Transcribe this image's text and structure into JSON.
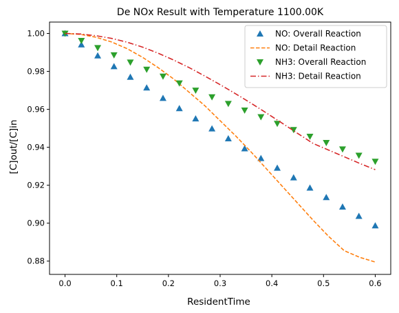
{
  "chart_data": {
    "type": "line",
    "title": "De NOx Result with Temperature 1100.00K",
    "xlabel": "ResidentTime",
    "ylabel": "[C]out/[C]in",
    "xlim": [
      -0.03,
      0.63
    ],
    "ylim": [
      0.873,
      1.006
    ],
    "xticks": [
      0.0,
      0.1,
      0.2,
      0.3,
      0.4,
      0.5,
      0.6
    ],
    "xtick_labels": [
      "0.0",
      "0.1",
      "0.2",
      "0.3",
      "0.4",
      "0.5",
      "0.6"
    ],
    "yticks": [
      0.88,
      0.9,
      0.92,
      0.94,
      0.96,
      0.98,
      1.0
    ],
    "ytick_labels": [
      "0.88",
      "0.90",
      "0.92",
      "0.94",
      "0.96",
      "0.98",
      "1.00"
    ],
    "grid": false,
    "legend_position": "top-right",
    "series": [
      {
        "name": "NO: Overall Reaction",
        "style": "marker-triangle-up",
        "color": "#1f77b4",
        "x": [
          0.0,
          0.0316,
          0.0632,
          0.0947,
          0.1263,
          0.1579,
          0.1895,
          0.2211,
          0.2526,
          0.2842,
          0.3158,
          0.3474,
          0.3789,
          0.4105,
          0.4421,
          0.4737,
          0.5053,
          0.5368,
          0.5684,
          0.6
        ],
        "y": [
          1.0,
          0.9941,
          0.9883,
          0.9826,
          0.977,
          0.9714,
          0.9659,
          0.9605,
          0.9551,
          0.9498,
          0.9446,
          0.9393,
          0.9342,
          0.9291,
          0.924,
          0.9186,
          0.9136,
          0.9086,
          0.9037,
          0.8987
        ]
      },
      {
        "name": "NO: Detail Reaction",
        "style": "dashed",
        "color": "#ff7f0e",
        "x": [
          0.0,
          0.03,
          0.06,
          0.09,
          0.12,
          0.15,
          0.18,
          0.21,
          0.24,
          0.27,
          0.3,
          0.33,
          0.36,
          0.39,
          0.42,
          0.45,
          0.48,
          0.51,
          0.54,
          0.57,
          0.6
        ],
        "y": [
          1.0,
          0.9995,
          0.998,
          0.9955,
          0.992,
          0.9874,
          0.982,
          0.976,
          0.969,
          0.962,
          0.954,
          0.946,
          0.9375,
          0.9285,
          0.9195,
          0.9105,
          0.9015,
          0.893,
          0.8855,
          0.882,
          0.8795
        ]
      },
      {
        "name": "NH3: Overall Reaction",
        "style": "marker-triangle-down",
        "color": "#2ca02c",
        "x": [
          0.0,
          0.0316,
          0.0632,
          0.0947,
          0.1263,
          0.1579,
          0.1895,
          0.2211,
          0.2526,
          0.2842,
          0.3158,
          0.3474,
          0.3789,
          0.4105,
          0.4421,
          0.4737,
          0.5053,
          0.5368,
          0.5684,
          0.6
        ],
        "y": [
          1.0,
          0.9962,
          0.9924,
          0.9886,
          0.9848,
          0.981,
          0.9774,
          0.9738,
          0.97,
          0.9665,
          0.963,
          0.9595,
          0.956,
          0.9525,
          0.9492,
          0.9457,
          0.9424,
          0.939,
          0.9357,
          0.9325
        ]
      },
      {
        "name": "NH3: Detail Reaction",
        "style": "dashdot",
        "color": "#d62728",
        "x": [
          0.0,
          0.03,
          0.06,
          0.09,
          0.12,
          0.15,
          0.18,
          0.21,
          0.24,
          0.27,
          0.3,
          0.33,
          0.36,
          0.39,
          0.42,
          0.45,
          0.48,
          0.51,
          0.54,
          0.57,
          0.6
        ],
        "y": [
          1.0,
          0.9997,
          0.9988,
          0.9974,
          0.9954,
          0.9928,
          0.9896,
          0.986,
          0.982,
          0.9776,
          0.973,
          0.9682,
          0.9632,
          0.958,
          0.9527,
          0.9473,
          0.942,
          0.9385,
          0.935,
          0.9315,
          0.9282
        ]
      }
    ]
  }
}
